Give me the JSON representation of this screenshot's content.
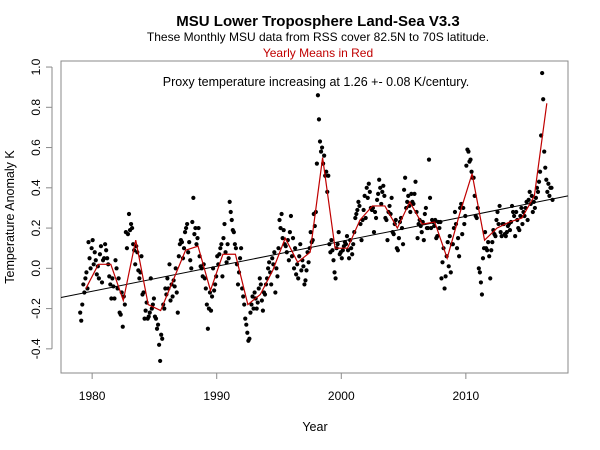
{
  "chart_data": {
    "type": "scatter",
    "title": "MSU Lower Troposphere Land-Sea V3.3",
    "subtitle": "These Monthly MSU data from RSS cover 82.5N to 70S latitude.",
    "subtitle2": "Yearly Means in Red",
    "annotation": "Proxy temperature increasing at 1.26 +- 0.08 K/century.",
    "xlabel": "Year",
    "ylabel": "Temperature Anomaly K",
    "xlim": [
      1977.5,
      2018.2
    ],
    "ylim": [
      -0.52,
      1.03
    ],
    "x_ticks": [
      1980,
      1990,
      2000,
      2010
    ],
    "x_tick_labels": [
      "1980",
      "1990",
      "2000",
      "2010"
    ],
    "y_ticks": [
      -0.4,
      -0.2,
      0.0,
      0.2,
      0.4,
      0.6,
      0.8,
      1.0
    ],
    "y_tick_labels": [
      "-0.4",
      "-0.2",
      "0.0",
      "0.2",
      "0.4",
      "0.6",
      "0.8",
      "1.0"
    ],
    "grid": false,
    "colors": {
      "points": "#000000",
      "yearly_means": "#c00000",
      "trend": "#000000",
      "subtitle2": "#c00000"
    },
    "trend": {
      "name": "Linear trend",
      "slope_per_century": 1.26,
      "slope_err": 0.08,
      "x": [
        1977.5,
        2018.2
      ],
      "y": [
        -0.145,
        0.36
      ]
    },
    "yearly_means": {
      "name": "Yearly Means",
      "x": [
        1979.5,
        1980.5,
        1981.5,
        1982.5,
        1983.5,
        1984.5,
        1985.5,
        1986.5,
        1987.5,
        1988.5,
        1989.5,
        1990.5,
        1991.5,
        1992.5,
        1993.5,
        1994.5,
        1995.5,
        1996.5,
        1997.5,
        1998.5,
        1999.5,
        2000.5,
        2001.5,
        2002.5,
        2003.5,
        2004.5,
        2005.5,
        2006.5,
        2007.5,
        2008.5,
        2009.5,
        2010.5,
        2011.5,
        2012.5,
        2013.5,
        2014.5,
        2015.5,
        2016.5
      ],
      "y": [
        -0.1,
        0.02,
        0.02,
        -0.16,
        0.14,
        -0.18,
        -0.21,
        -0.06,
        0.09,
        0.11,
        -0.11,
        0.07,
        0.07,
        -0.18,
        -0.13,
        -0.01,
        0.15,
        0.03,
        0.08,
        0.55,
        0.1,
        0.1,
        0.24,
        0.31,
        0.31,
        0.2,
        0.33,
        0.22,
        0.23,
        0.05,
        0.27,
        0.47,
        0.14,
        0.2,
        0.23,
        0.25,
        0.36,
        0.82
      ]
    },
    "monthly": {
      "name": "Monthly MSU anomalies",
      "start_year": 1979.0,
      "values": [
        -0.22,
        -0.26,
        -0.18,
        -0.08,
        -0.12,
        -0.05,
        -0.02,
        -0.1,
        0.13,
        0.05,
        0.0,
        0.1,
        0.14,
        0.02,
        0.08,
        0.04,
        -0.03,
        0.01,
        -0.05,
        0.07,
        0.11,
        -0.07,
        0.04,
        0.05,
        0.12,
        0.09,
        0.05,
        0.02,
        -0.04,
        -0.08,
        -0.15,
        -0.05,
        -0.09,
        -0.15,
        0.04,
        0.0,
        -0.1,
        -0.05,
        -0.22,
        -0.23,
        -0.12,
        -0.29,
        -0.14,
        -0.18,
        0.18,
        0.1,
        0.17,
        0.27,
        0.19,
        0.22,
        0.2,
        0.12,
        0.09,
        0.02,
        0.11,
        0.08,
        -0.01,
        -0.05,
        -0.02,
        0.06,
        -0.13,
        -0.12,
        -0.25,
        -0.21,
        -0.17,
        -0.25,
        -0.24,
        -0.22,
        -0.05,
        -0.2,
        -0.18,
        -0.15,
        -0.24,
        -0.25,
        -0.3,
        -0.28,
        -0.38,
        -0.46,
        -0.33,
        -0.35,
        -0.18,
        -0.2,
        -0.1,
        -0.13,
        -0.05,
        -0.1,
        0.02,
        -0.16,
        -0.08,
        -0.14,
        -0.06,
        -0.09,
        0.0,
        -0.12,
        -0.22,
        0.06,
        0.12,
        0.14,
        0.13,
        0.05,
        0.1,
        0.18,
        0.2,
        0.22,
        0.08,
        0.13,
        0.04,
        0.0,
        0.23,
        0.35,
        0.17,
        0.2,
        0.12,
        0.15,
        0.2,
        0.06,
        0.01,
        0.0,
        -0.04,
        0.02,
        -0.05,
        -0.1,
        -0.18,
        -0.3,
        -0.2,
        -0.12,
        -0.21,
        -0.14,
        0.0,
        -0.11,
        -0.08,
        -0.04,
        0.06,
        0.02,
        0.07,
        0.1,
        0.12,
        -0.04,
        0.15,
        0.22,
        0.08,
        0.03,
        0.12,
        0.05,
        0.33,
        0.28,
        0.24,
        0.19,
        0.18,
        0.12,
        0.1,
        0.02,
        -0.08,
        -0.02,
        0.05,
        0.1,
        -0.1,
        -0.14,
        -0.18,
        -0.25,
        -0.28,
        -0.32,
        -0.36,
        -0.35,
        -0.22,
        -0.18,
        -0.14,
        -0.2,
        -0.12,
        -0.15,
        -0.2,
        -0.17,
        -0.1,
        -0.05,
        -0.08,
        -0.16,
        -0.21,
        -0.12,
        -0.13,
        -0.08,
        -0.05,
        0.0,
        0.03,
        -0.02,
        -0.08,
        0.05,
        0.02,
        0.08,
        -0.12,
        0.0,
        -0.04,
        0.1,
        0.24,
        0.2,
        0.27,
        0.15,
        0.19,
        0.12,
        0.11,
        0.08,
        0.14,
        0.04,
        0.18,
        0.26,
        0.06,
        0.15,
        0.0,
        0.1,
        -0.03,
        0.02,
        -0.05,
        0.06,
        0.12,
        -0.01,
        0.04,
        0.01,
        -0.08,
        -0.06,
        -0.01,
        0.08,
        0.03,
        0.1,
        0.18,
        0.13,
        0.14,
        0.27,
        0.21,
        0.28,
        0.52,
        0.86,
        0.74,
        0.63,
        0.58,
        0.6,
        0.52,
        0.56,
        0.46,
        0.48,
        0.38,
        0.46,
        0.12,
        0.08,
        0.14,
        0.09,
        0.04,
        -0.02,
        -0.05,
        0.1,
        0.12,
        0.18,
        0.07,
        0.08,
        0.05,
        0.09,
        0.11,
        0.13,
        0.12,
        0.16,
        0.09,
        0.05,
        0.14,
        0.1,
        0.07,
        0.12,
        0.18,
        0.25,
        0.27,
        0.29,
        0.33,
        0.31,
        0.22,
        0.14,
        0.24,
        0.29,
        0.36,
        0.25,
        0.4,
        0.35,
        0.42,
        0.38,
        0.3,
        0.29,
        0.3,
        0.18,
        0.28,
        0.25,
        0.34,
        0.37,
        0.44,
        0.4,
        0.32,
        0.38,
        0.41,
        0.36,
        0.25,
        0.24,
        0.14,
        0.28,
        0.31,
        0.27,
        0.35,
        0.18,
        0.17,
        0.22,
        0.24,
        0.1,
        0.09,
        0.15,
        0.23,
        0.25,
        0.2,
        0.12,
        0.39,
        0.45,
        0.3,
        0.33,
        0.36,
        0.31,
        0.28,
        0.37,
        0.33,
        0.32,
        0.37,
        0.43,
        0.28,
        0.15,
        0.22,
        0.24,
        0.21,
        0.18,
        0.23,
        0.14,
        0.27,
        0.3,
        0.2,
        0.2,
        0.54,
        0.35,
        0.2,
        0.24,
        0.23,
        0.21,
        0.24,
        0.15,
        0.16,
        0.23,
        0.2,
        0.23,
        -0.05,
        0.03,
        0.1,
        -0.1,
        -0.04,
        0.06,
        0.13,
        0.01,
        0.16,
        -0.02,
        0.12,
        0.12,
        0.2,
        0.28,
        0.22,
        0.1,
        0.15,
        0.06,
        0.3,
        0.32,
        0.17,
        0.3,
        0.22,
        0.26,
        0.51,
        0.59,
        0.58,
        0.53,
        0.54,
        0.48,
        0.45,
        0.45,
        0.36,
        0.26,
        0.25,
        0.3,
        0.0,
        -0.02,
        -0.07,
        -0.13,
        0.05,
        0.1,
        0.18,
        0.1,
        0.09,
        0.13,
        0.06,
        -0.05,
        0.09,
        0.13,
        0.19,
        0.17,
        0.16,
        0.24,
        0.28,
        0.22,
        0.31,
        0.18,
        0.16,
        0.22,
        0.22,
        0.17,
        0.16,
        0.18,
        0.21,
        0.22,
        0.19,
        0.23,
        0.31,
        0.28,
        0.26,
        0.16,
        0.28,
        0.24,
        0.2,
        0.19,
        0.26,
        0.3,
        0.22,
        0.28,
        0.26,
        0.3,
        0.33,
        0.24,
        0.34,
        0.38,
        0.32,
        0.36,
        0.28,
        0.33,
        0.3,
        0.35,
        0.4,
        0.38,
        0.43,
        0.48,
        0.66,
        0.97,
        0.84,
        0.58,
        0.5,
        0.44,
        0.38,
        0.42,
        0.36,
        0.4,
        0.4,
        0.34
      ]
    }
  }
}
